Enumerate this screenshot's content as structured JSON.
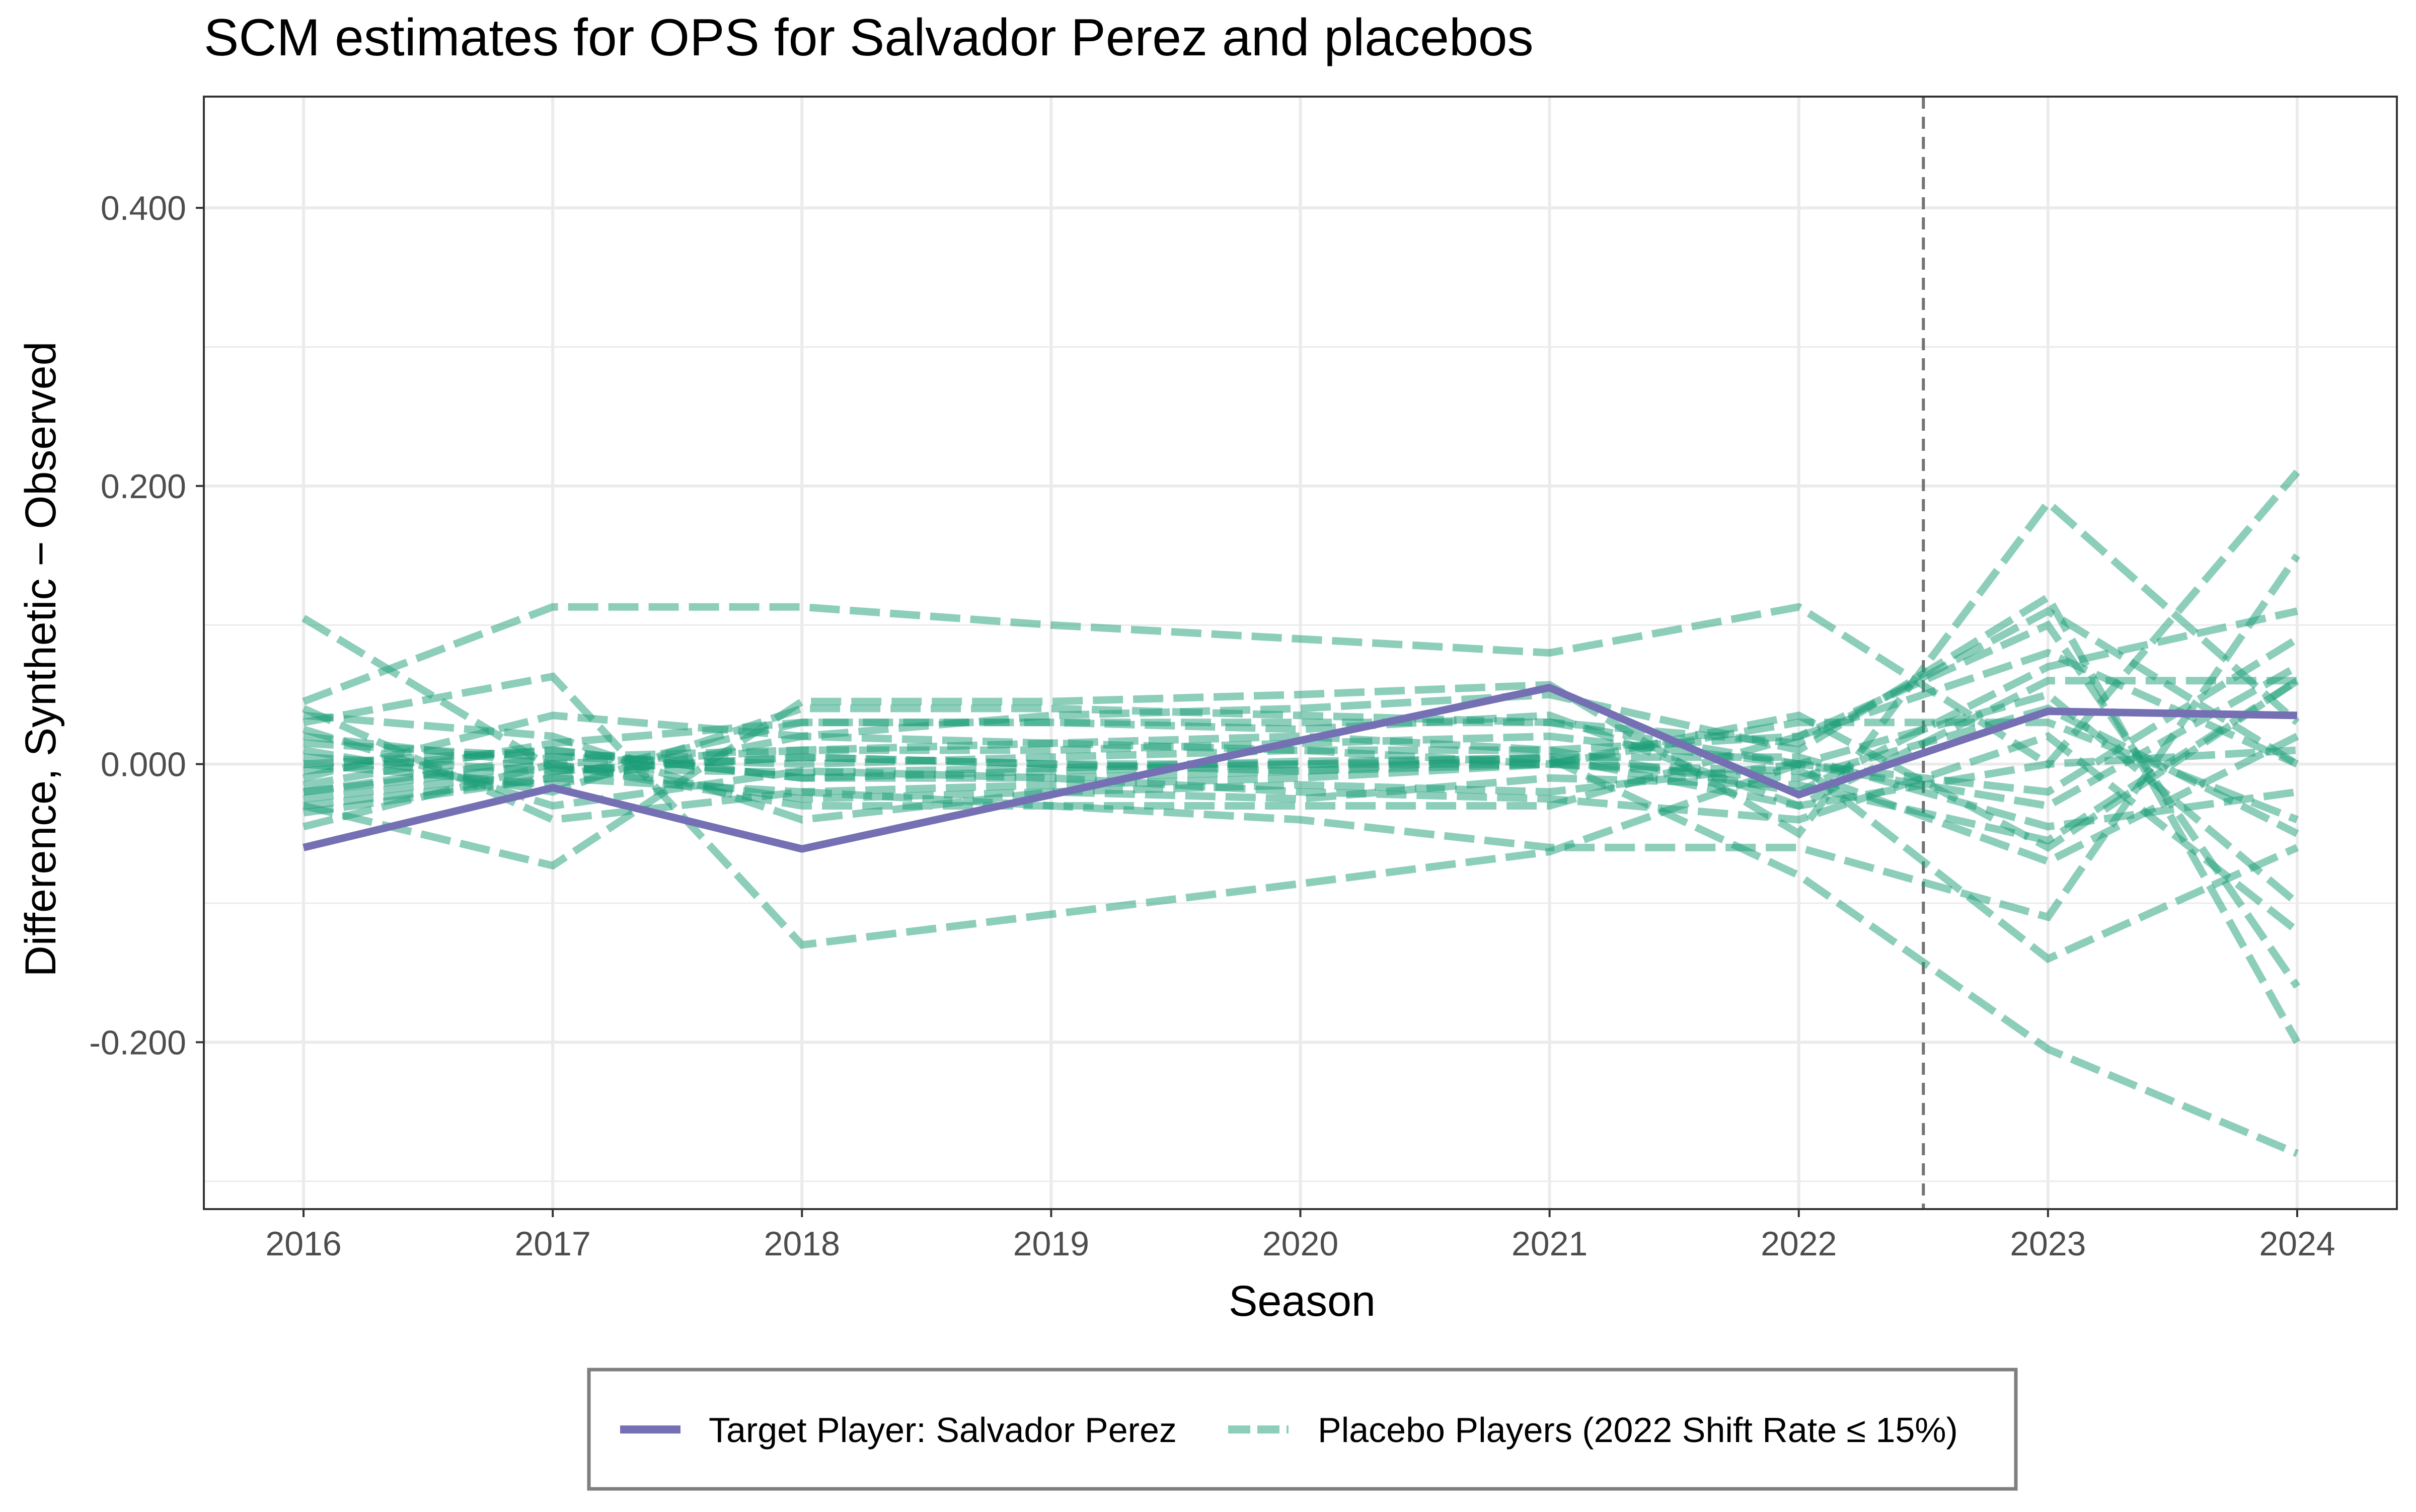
{
  "chart_data": {
    "type": "line",
    "title": "SCM estimates for OPS for Salvador Perez and placebos",
    "xlabel": "Season",
    "ylabel": "Difference, Synthetic − Observed",
    "x": [
      2016,
      2017,
      2018,
      2019,
      2020,
      2021,
      2022,
      2023,
      2024
    ],
    "xlim": [
      2015.6,
      2024.4
    ],
    "ylim": [
      -0.32,
      0.48
    ],
    "y_ticks": [
      0.4,
      0.2,
      0.0,
      -0.2
    ],
    "y_tick_labels": [
      "0.400",
      "0.200",
      "0.000",
      "-0.200"
    ],
    "x_tick_labels": [
      "2016",
      "2017",
      "2018",
      "2019",
      "2020",
      "2021",
      "2022",
      "2023",
      "2024"
    ],
    "grid": true,
    "treatment_line_x": 2022.5,
    "legend_position": "bottom",
    "legend": [
      {
        "label": "Target Player: Salvador Perez",
        "color": "#7570b3",
        "style": "solid"
      },
      {
        "label": "Placebo Players (2022 Shift Rate ≤ 15%)",
        "color": "#1b9e77",
        "style": "dashed"
      }
    ],
    "series": [
      {
        "group": "target",
        "color": "#7570b3",
        "values": [
          -0.06,
          -0.017,
          -0.061,
          -0.022,
          0.017,
          0.055,
          -0.022,
          0.038,
          0.035
        ]
      },
      {
        "group": "placebo",
        "color": "#1b9e77",
        "values": [
          0.105,
          -0.003,
          -0.006,
          -0.003,
          0.002,
          0.004,
          -0.08,
          -0.205,
          -0.28
        ]
      },
      {
        "group": "placebo",
        "color": "#1b9e77",
        "values": [
          0.045,
          0.113,
          0.113,
          0.1,
          0.09,
          0.08,
          0.113,
          0.0,
          0.21
        ]
      },
      {
        "group": "placebo",
        "color": "#1b9e77",
        "values": [
          0.03,
          0.063,
          -0.13,
          -0.108,
          -0.086,
          -0.063,
          0.0,
          -0.14,
          -0.06
        ]
      },
      {
        "group": "placebo",
        "color": "#1b9e77",
        "values": [
          -0.03,
          -0.073,
          0.045,
          0.045,
          0.05,
          0.057,
          -0.05,
          0.188,
          0.03
        ]
      },
      {
        "group": "placebo",
        "color": "#1b9e77",
        "values": [
          -0.01,
          0.035,
          0.02,
          0.035,
          0.04,
          0.05,
          0.01,
          0.12,
          -0.2
        ]
      },
      {
        "group": "placebo",
        "color": "#1b9e77",
        "values": [
          0.04,
          -0.04,
          -0.02,
          -0.03,
          -0.04,
          -0.06,
          -0.06,
          -0.11,
          0.15
        ]
      },
      {
        "group": "placebo",
        "color": "#1b9e77",
        "values": [
          -0.035,
          -0.01,
          0.03,
          0.03,
          0.03,
          0.03,
          0.0,
          0.05,
          -0.1
        ]
      },
      {
        "group": "placebo",
        "color": "#1b9e77",
        "values": [
          0.02,
          0.0,
          -0.03,
          -0.03,
          -0.03,
          -0.03,
          0.02,
          0.1,
          -0.16
        ]
      },
      {
        "group": "placebo",
        "color": "#1b9e77",
        "values": [
          -0.02,
          0.005,
          0.0,
          0.005,
          0.01,
          0.01,
          -0.02,
          0.07,
          0.11
        ]
      },
      {
        "group": "placebo",
        "color": "#1b9e77",
        "values": [
          0.0,
          0.01,
          -0.01,
          -0.01,
          -0.005,
          0.0,
          0.035,
          -0.06,
          0.06
        ]
      },
      {
        "group": "placebo",
        "color": "#1b9e77",
        "values": [
          -0.025,
          -0.005,
          0.005,
          0.0,
          0.0,
          0.0,
          -0.01,
          0.04,
          -0.05
        ]
      },
      {
        "group": "placebo",
        "color": "#1b9e77",
        "values": [
          0.035,
          0.02,
          -0.04,
          -0.02,
          -0.015,
          -0.02,
          0.0,
          -0.03,
          0.07
        ]
      },
      {
        "group": "placebo",
        "color": "#1b9e77",
        "values": [
          0.01,
          -0.02,
          0.04,
          0.04,
          0.035,
          0.03,
          0.015,
          0.11,
          0.0
        ]
      },
      {
        "group": "placebo",
        "color": "#1b9e77",
        "values": [
          -0.045,
          0.0,
          0.01,
          0.01,
          0.015,
          0.02,
          0.0,
          -0.02,
          0.09
        ]
      },
      {
        "group": "placebo",
        "color": "#1b9e77",
        "values": [
          0.025,
          -0.03,
          -0.005,
          -0.01,
          -0.02,
          -0.025,
          -0.04,
          0.02,
          -0.12
        ]
      },
      {
        "group": "placebo",
        "color": "#1b9e77",
        "values": [
          -0.015,
          0.015,
          0.03,
          0.03,
          0.025,
          0.035,
          -0.03,
          0.06,
          0.06
        ]
      },
      {
        "group": "placebo",
        "color": "#1b9e77",
        "values": [
          0.005,
          -0.005,
          0.005,
          0.0,
          -0.005,
          0.005,
          0.005,
          -0.045,
          -0.02
        ]
      },
      {
        "group": "placebo",
        "color": "#1b9e77",
        "values": [
          -0.03,
          -0.01,
          -0.02,
          -0.015,
          -0.01,
          0.0,
          -0.005,
          -0.07,
          0.02
        ]
      },
      {
        "group": "placebo",
        "color": "#1b9e77",
        "values": [
          0.015,
          0.005,
          0.01,
          0.015,
          0.02,
          0.01,
          0.02,
          0.08,
          0.0
        ]
      },
      {
        "group": "placebo",
        "color": "#1b9e77",
        "values": [
          -0.02,
          0.0,
          -0.025,
          -0.02,
          -0.025,
          -0.01,
          -0.015,
          -0.055,
          0.06
        ]
      },
      {
        "group": "placebo",
        "color": "#1b9e77",
        "values": [
          0.0,
          -0.015,
          0.02,
          0.015,
          0.01,
          0.0,
          0.03,
          0.03,
          -0.04
        ]
      },
      {
        "group": "placebo",
        "color": "#1b9e77",
        "values": [
          -0.005,
          0.01,
          -0.01,
          -0.005,
          0.0,
          0.005,
          -0.03,
          0.0,
          0.01
        ]
      }
    ]
  }
}
